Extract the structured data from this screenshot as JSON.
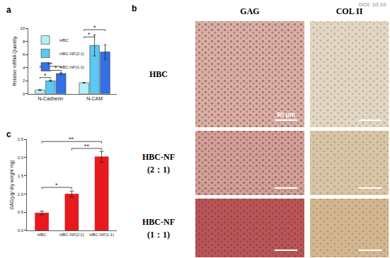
{
  "doi": "DOI: 10.10",
  "chart_data": [
    {
      "label": "a",
      "type": "bar",
      "y_label": "Relative mRNA Quantity",
      "categories": [
        "N-Cadherin",
        "N-CAM"
      ],
      "series": [
        {
          "name": "HBC",
          "color": "#b3f0f5",
          "values": [
            0.6,
            1.7
          ],
          "errors": [
            0.08,
            0.06
          ]
        },
        {
          "name": "HBC-NF(2:1)",
          "color": "#5bc8f5",
          "values": [
            2.0,
            7.4
          ],
          "errors": [
            0.1,
            1.6
          ]
        },
        {
          "name": "HBC-NF(1:1)",
          "color": "#3370e8",
          "values": [
            3.1,
            6.4
          ],
          "errors": [
            0.15,
            1.1
          ]
        }
      ],
      "ylim": [
        0,
        10
      ],
      "yticks": [
        0,
        2,
        4,
        6,
        8,
        10
      ],
      "legend": "upper left",
      "annotations": [
        {
          "text": "*",
          "category": "N-Cadherin",
          "between": [
            "HBC",
            "HBC-NF(2:1)"
          ],
          "y": 2.5
        },
        {
          "text": "*",
          "category": "N-Cadherin",
          "between": [
            "HBC-NF(2:1)",
            "HBC-NF(1:1)"
          ],
          "y": 3.6
        },
        {
          "text": "**",
          "category": "N-Cadherin",
          "between": [
            "HBC",
            "HBC-NF(1:1)"
          ],
          "y": 4.2
        },
        {
          "text": "*",
          "category": "N-CAM",
          "between": [
            "HBC",
            "HBC-NF(2:1)"
          ],
          "y": 8.7
        },
        {
          "text": "*",
          "category": "N-CAM",
          "between": [
            "HBC",
            "HBC-NF(1:1)"
          ],
          "y": 9.8
        }
      ]
    },
    {
      "label": "c",
      "type": "bar",
      "y_label": "GAG(μg/ dry weight mg)",
      "categories": [
        "HBC",
        "HBC-NF(2:1)",
        "HBC-NF(1:1)"
      ],
      "values": [
        0.48,
        1.0,
        2.02
      ],
      "errors": [
        0.05,
        0.08,
        0.15
      ],
      "color": "#e8191c",
      "ylim": [
        0,
        2.5
      ],
      "yticks": [
        {
          "value": 0,
          "label": "0.0"
        },
        0.5,
        {
          "value": 1,
          "label": "1.0"
        },
        1.5,
        {
          "value": 2,
          "label": "2.0"
        },
        2.5
      ],
      "annotations": [
        {
          "text": "*",
          "between": [
            "HBC",
            "HBC-NF(2:1)"
          ],
          "y": 1.18
        },
        {
          "text": "**",
          "between": [
            "HBC-NF(2:1)",
            "HBC-NF(1:1)"
          ],
          "y": 2.25
        },
        {
          "text": "**",
          "between": [
            "HBC",
            "HBC-NF(1:1)"
          ],
          "y": 2.44
        }
      ]
    }
  ],
  "panel_b": {
    "label": "b",
    "columns": [
      "GAG",
      "COL II"
    ],
    "rows": [
      [
        "HBC"
      ],
      [
        "HBC-NF",
        "(2：1)"
      ],
      [
        "HBC-NF",
        "(1：1)"
      ]
    ],
    "scale_bar": "50 μm"
  }
}
